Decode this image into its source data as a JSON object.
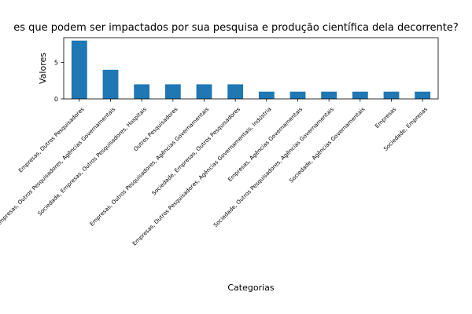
{
  "chart_data": {
    "type": "bar",
    "title": "es que podem ser impactados por sua pesquisa e produção científica dela decorrente?",
    "xlabel": "Categorias",
    "ylabel": "Valores",
    "ylim": [
      0,
      8.4
    ],
    "yticks": [
      0,
      5
    ],
    "grid": false,
    "bar_color": "#1f77b4",
    "categories": [
      "Empresas, Outros Pesquisadores",
      "Sociedade, Empresas, Outros Pesquisadores, Agências Governamentais",
      "Sociedade, Empresas, Outros Pesquisadores, Hospitais",
      "Outros Pesquisadores",
      "Empresas, Outros Pesquisadores, Agências Governamentais",
      "Sociedade, Empresas, Outros Pesquisadores",
      "Empresas, Outros Pesquisadores, Agências Governamentais, Indústria",
      "Empresas, Agências Governamentais",
      "Sociedade, Outros Pesquisadores, Agências Governamentais",
      "Sociedade, Agências Governamentais",
      "Empresas",
      "Sociedade, Empresas"
    ],
    "values": [
      8,
      4,
      2,
      2,
      2,
      2,
      1,
      1,
      1,
      1,
      1,
      1
    ]
  }
}
